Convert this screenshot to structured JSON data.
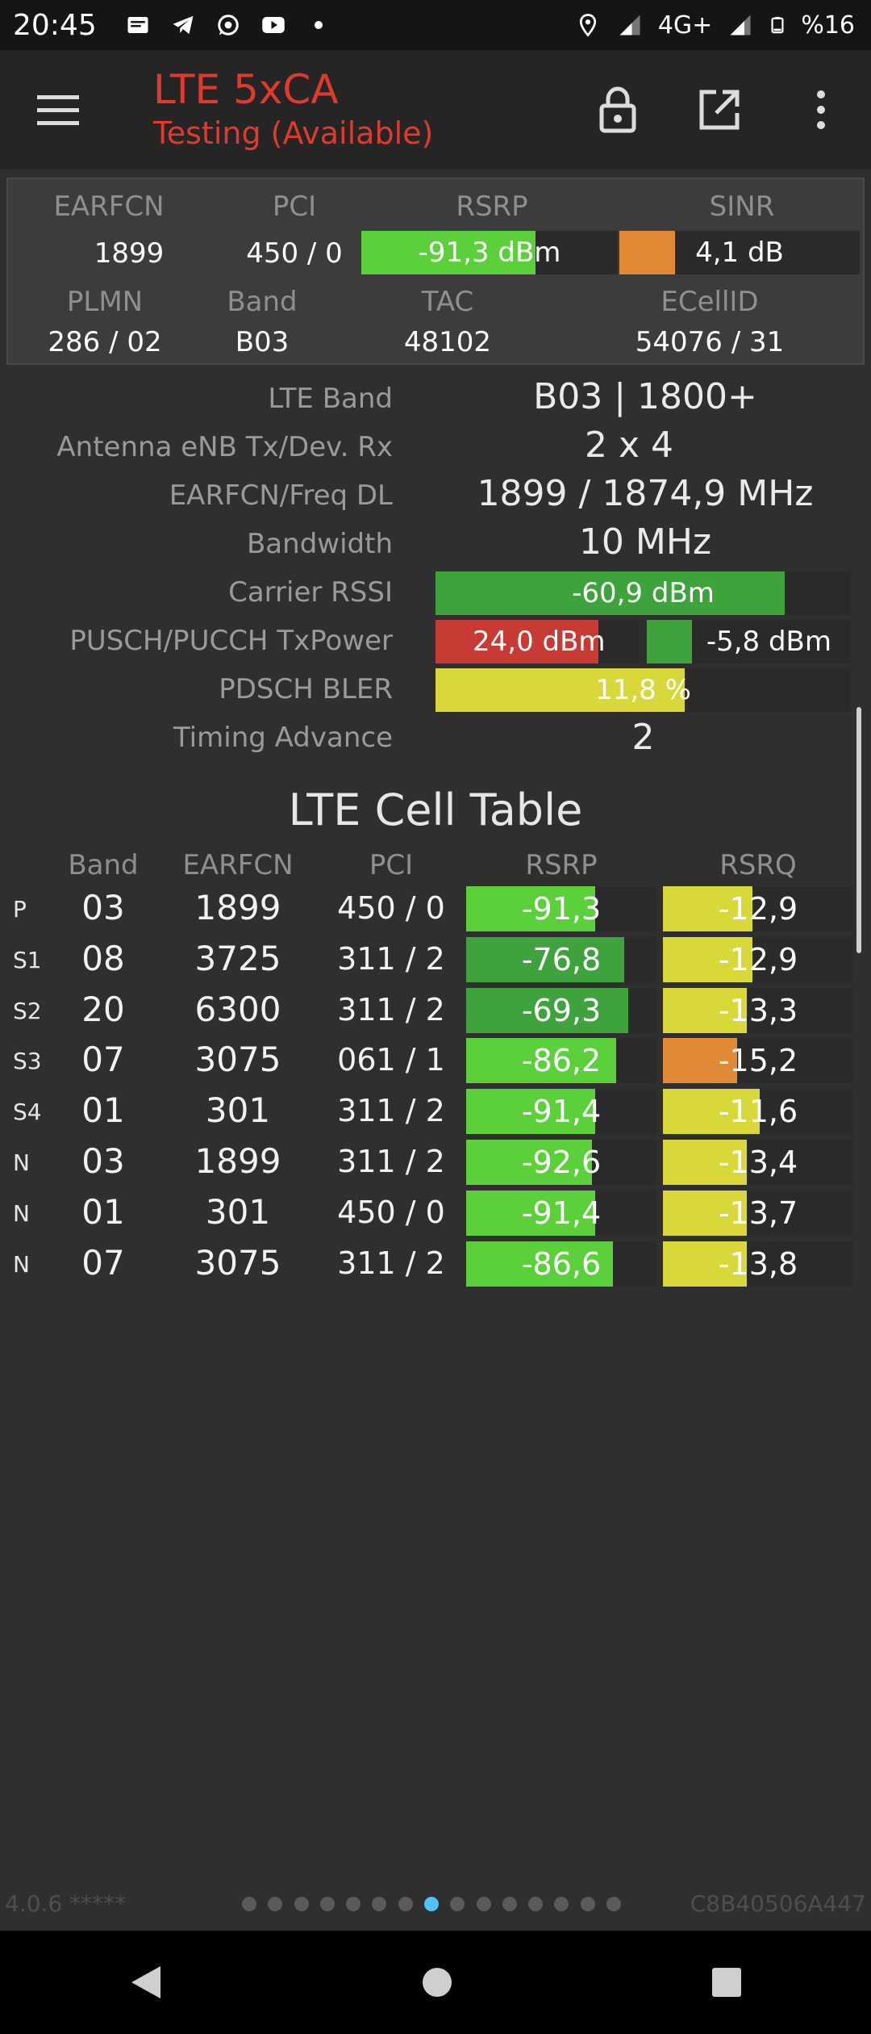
{
  "status_bar": {
    "time": "20:45",
    "network": "4G+",
    "battery": "%16",
    "icons": [
      "message-icon",
      "telegram-icon",
      "whatsapp-icon",
      "youtube-icon",
      "dot-icon",
      "location-icon",
      "signal-icon",
      "signal-icon",
      "battery-icon"
    ]
  },
  "app_bar": {
    "title": "LTE 5xCA",
    "subtitle": "Testing (Available)",
    "actions": [
      "menu-icon",
      "lock-icon",
      "external-link-icon",
      "more-vert-icon"
    ]
  },
  "summary": {
    "labels": {
      "earfcn": "EARFCN",
      "pci": "PCI",
      "rsrp": "RSRP",
      "sinr": "SINR",
      "plmn": "PLMN",
      "band": "Band",
      "tac": "TAC",
      "ecellid": "ECellID"
    },
    "earfcn": "1899",
    "pci": "450 / 0",
    "rsrp": {
      "text": "-91,3 dBm",
      "level": 0.68,
      "color": "#5cd03a"
    },
    "sinr": {
      "text": "4,1 dB",
      "level": 0.23,
      "color": "#e08a35"
    },
    "plmn": "286 / 02",
    "band": "B03",
    "tac": "48102",
    "ecellid": "54076 / 31"
  },
  "details": {
    "lte_band_label": "LTE Band",
    "lte_band": "B03 | 1800+",
    "antenna_label": "Antenna eNB Tx/Dev. Rx",
    "antenna": "2 x 4",
    "earfcn_label": "EARFCN/Freq DL",
    "earfcn": "1899 / 1874,9 MHz",
    "bandwidth_label": "Bandwidth",
    "bandwidth": "10 MHz",
    "rssi_label": "Carrier RSSI",
    "rssi": {
      "text": "-60,9 dBm",
      "level": 0.84,
      "color": "#3ea33c"
    },
    "txpower_label": "PUSCH/PUCCH TxPower",
    "pusch": {
      "text": "24,0 dBm",
      "level": 0.8,
      "color": "#c83a34"
    },
    "pucch": {
      "text": "-5,8 dBm",
      "level": 0.22,
      "color": "#3ea33c"
    },
    "bler_label": "PDSCH BLER",
    "bler": {
      "text": "11,8 %",
      "level": 0.6,
      "color": "#d8d83a"
    },
    "ta_label": "Timing Advance",
    "ta": "2"
  },
  "cell_table": {
    "title": "LTE Cell Table",
    "headers": {
      "band": "Band",
      "earfcn": "EARFCN",
      "pci": "PCI",
      "rsrp": "RSRP",
      "rsrq": "RSRQ"
    },
    "rows": [
      {
        "tag": "P",
        "band": "03",
        "earfcn": "1899",
        "pci": "450 / 0",
        "rsrp": "-91,3",
        "rsrp_level": 0.68,
        "rsrp_color": "#5cd03a",
        "rsrq": "-12,9",
        "rsrq_level": 0.47,
        "rsrq_color": "#d8d83a"
      },
      {
        "tag": "S1",
        "band": "08",
        "earfcn": "3725",
        "pci": "311 / 2",
        "rsrp": "-76,8",
        "rsrp_level": 0.83,
        "rsrp_color": "#3ea33c",
        "rsrq": "-12,9",
        "rsrq_level": 0.47,
        "rsrq_color": "#d8d83a"
      },
      {
        "tag": "S2",
        "band": "20",
        "earfcn": "6300",
        "pci": "311 / 2",
        "rsrp": "-69,3",
        "rsrp_level": 0.85,
        "rsrp_color": "#3ea33c",
        "rsrq": "-13,3",
        "rsrq_level": 0.44,
        "rsrq_color": "#d8d83a"
      },
      {
        "tag": "S3",
        "band": "07",
        "earfcn": "3075",
        "pci": "061 / 1",
        "rsrp": "-86,2",
        "rsrp_level": 0.79,
        "rsrp_color": "#5cd03a",
        "rsrq": "-15,2",
        "rsrq_level": 0.39,
        "rsrq_color": "#e08a35"
      },
      {
        "tag": "S4",
        "band": "01",
        "earfcn": "301",
        "pci": "311 / 2",
        "rsrp": "-91,4",
        "rsrp_level": 0.68,
        "rsrp_color": "#5cd03a",
        "rsrq": "-11,6",
        "rsrq_level": 0.51,
        "rsrq_color": "#d8d83a"
      },
      {
        "tag": "N",
        "band": "03",
        "earfcn": "1899",
        "pci": "311 / 2",
        "rsrp": "-92,6",
        "rsrp_level": 0.66,
        "rsrp_color": "#5cd03a",
        "rsrq": "-13,4",
        "rsrq_level": 0.44,
        "rsrq_color": "#d8d83a"
      },
      {
        "tag": "N",
        "band": "01",
        "earfcn": "301",
        "pci": "450 / 0",
        "rsrp": "-91,4",
        "rsrp_level": 0.68,
        "rsrp_color": "#5cd03a",
        "rsrq": "-13,7",
        "rsrq_level": 0.44,
        "rsrq_color": "#d8d83a"
      },
      {
        "tag": "N",
        "band": "07",
        "earfcn": "3075",
        "pci": "311 / 2",
        "rsrp": "-86,6",
        "rsrp_level": 0.77,
        "rsrp_color": "#5cd03a",
        "rsrq": "-13,8",
        "rsrq_level": 0.44,
        "rsrq_color": "#d8d83a"
      }
    ]
  },
  "footer": {
    "version": "4.0.6 *****",
    "device_id": "C8B40506A447",
    "pages": 15,
    "active_page": 8
  }
}
